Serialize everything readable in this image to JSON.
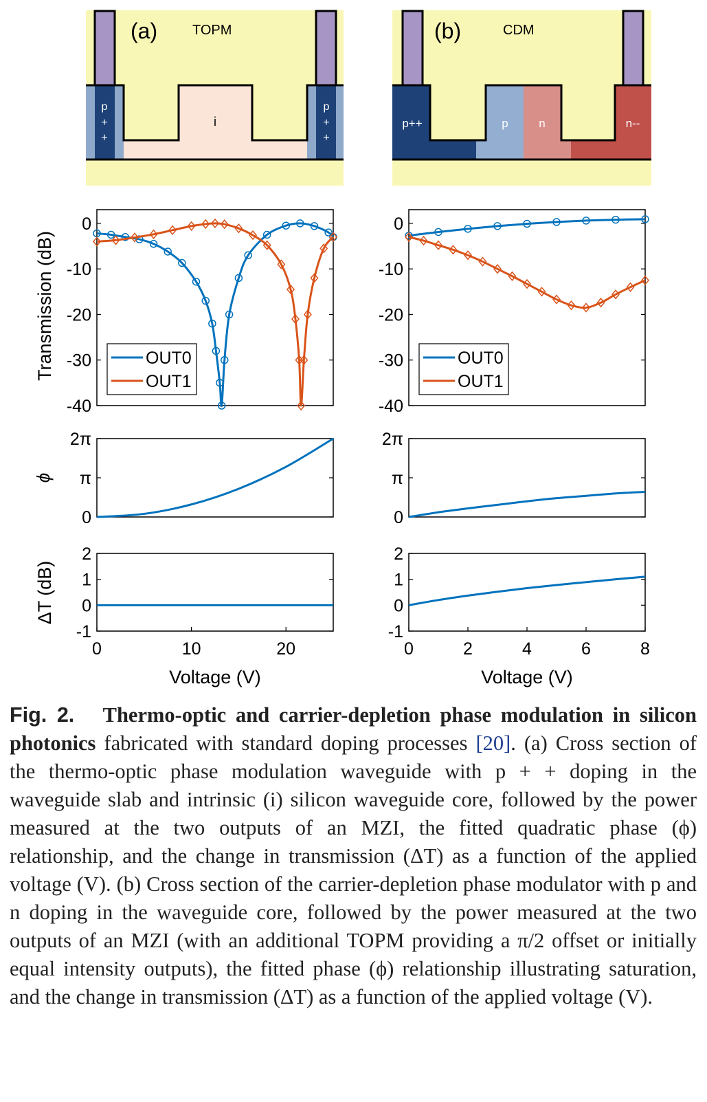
{
  "panels": [
    {
      "id": "a",
      "label": "(a)",
      "device": "TOPM",
      "regions": {
        "left_contact": "p\n+\n+",
        "core": "i",
        "right_contact": "p\n+\n+"
      },
      "colors": {
        "cladding": "#f9f7b5",
        "contact": "#1e4277",
        "contact_edge": "#8fa9cb",
        "core": "#fbe5d8",
        "metal": "#a796c5"
      },
      "transmission": {
        "ylabel": "Transmission (dB)",
        "xlim": [
          0,
          25
        ],
        "ylim": [
          -40,
          3
        ],
        "yticks": [
          "0",
          "-10",
          "-20",
          "-30",
          "-40"
        ],
        "legend": [
          "OUT0",
          "OUT1"
        ]
      },
      "phase": {
        "ylabel": "ϕ",
        "yticks": [
          "2π",
          "π",
          "0"
        ],
        "final_phase_fraction_of_2pi": 1.0
      },
      "delta_t": {
        "ylabel": "ΔT (dB)",
        "yticks": [
          "2",
          "1",
          "0",
          "-1"
        ],
        "xticks": [
          "0",
          "10",
          "20"
        ],
        "xlabel": "Voltage (V)"
      }
    },
    {
      "id": "b",
      "label": "(b)",
      "device": "CDM",
      "regions": {
        "left_contact": "p++",
        "core_p": "p",
        "core_n": "n",
        "right_contact": "n--"
      },
      "colors": {
        "cladding": "#f9f7b5",
        "pplus": "#1e4277",
        "p": "#93aed0",
        "n": "#d98f89",
        "nminus": "#c0504a",
        "metal": "#a796c5"
      },
      "transmission": {
        "ylabel": "",
        "xlim": [
          0,
          8
        ],
        "ylim": [
          -40,
          3
        ],
        "yticks": [
          "0",
          "-10",
          "-20",
          "-30",
          "-40"
        ],
        "legend": [
          "OUT0",
          "OUT1"
        ]
      },
      "phase": {
        "ylabel": "",
        "yticks": [
          "2π",
          "π",
          "0"
        ],
        "final_phase_fraction_of_2pi": 0.32
      },
      "delta_t": {
        "ylabel": "",
        "yticks": [
          "2",
          "1",
          "0",
          "-1"
        ],
        "xticks": [
          "0",
          "2",
          "4",
          "6",
          "8"
        ],
        "xlabel": "Voltage (V)"
      }
    }
  ],
  "series_colors": {
    "OUT0": "#0072bd",
    "OUT1": "#d95319"
  },
  "chart_data": [
    {
      "type": "line",
      "panel": "a",
      "ylabel": "Transmission (dB)",
      "xlim": [
        0,
        25
      ],
      "ylim": [
        -40,
        3
      ],
      "series": [
        {
          "name": "OUT0",
          "x": [
            0,
            1.5,
            3,
            4.5,
            6,
            7.5,
            9,
            10.5,
            11.5,
            12.2,
            12.6,
            13.0,
            13.2,
            13.5,
            14,
            15,
            16,
            18,
            20,
            21.5,
            23,
            24.5,
            25
          ],
          "values": [
            -2.2,
            -2.5,
            -3.0,
            -3.5,
            -4.5,
            -6.2,
            -8.7,
            -12.8,
            -17.0,
            -22,
            -28,
            -35,
            -40,
            -30,
            -20,
            -12,
            -7,
            -2.5,
            -0.5,
            0,
            -0.6,
            -2.0,
            -3
          ]
        },
        {
          "name": "OUT1",
          "x": [
            0,
            2,
            4,
            6,
            8,
            10,
            11.5,
            12.5,
            13.5,
            15,
            16.5,
            18,
            19.5,
            20.5,
            21.0,
            21.4,
            21.6,
            21.9,
            22.3,
            23,
            24,
            25
          ],
          "values": [
            -4,
            -3.7,
            -3.1,
            -2.4,
            -1.5,
            -0.6,
            -0.15,
            0,
            -0.2,
            -1.1,
            -2.6,
            -4.8,
            -9,
            -14.5,
            -21,
            -30,
            -40,
            -30,
            -20,
            -12,
            -5.5,
            -3
          ]
        }
      ]
    },
    {
      "type": "line",
      "panel": "a",
      "ylabel": "ϕ",
      "xlim": [
        0,
        25
      ],
      "series": [
        {
          "name": "",
          "x": [
            0,
            5,
            10,
            15,
            20,
            25
          ],
          "values": [
            0,
            0.04,
            0.16,
            0.36,
            0.64,
            1.0
          ]
        }
      ]
    },
    {
      "type": "line",
      "panel": "a",
      "ylabel": "ΔT (dB)",
      "xlabel": "Voltage (V)",
      "xlim": [
        0,
        25
      ],
      "ylim": [
        -1,
        2
      ],
      "series": [
        {
          "name": "",
          "x": [
            0,
            25
          ],
          "values": [
            0,
            0
          ]
        }
      ]
    },
    {
      "type": "line",
      "panel": "b",
      "xlim": [
        0,
        8
      ],
      "ylim": [
        -40,
        3
      ],
      "series": [
        {
          "name": "OUT0",
          "x": [
            0,
            1,
            2,
            3,
            4,
            5,
            6,
            7,
            8
          ],
          "values": [
            -2.7,
            -1.9,
            -1.2,
            -0.6,
            -0.1,
            0.3,
            0.6,
            0.8,
            0.9
          ]
        },
        {
          "name": "OUT1",
          "x": [
            0,
            0.5,
            1,
            1.5,
            2,
            2.5,
            3,
            3.5,
            4,
            4.5,
            5,
            5.5,
            6,
            6.5,
            7,
            7.5,
            8
          ],
          "values": [
            -3,
            -3.8,
            -4.8,
            -5.8,
            -7,
            -8.4,
            -10.0,
            -11.6,
            -13.3,
            -15.0,
            -16.7,
            -18.0,
            -18.5,
            -17.4,
            -15.6,
            -14.0,
            -12.5
          ]
        }
      ]
    },
    {
      "type": "line",
      "panel": "b",
      "xlim": [
        0,
        8
      ],
      "series": [
        {
          "name": "",
          "x": [
            0,
            1,
            2,
            3,
            4,
            5,
            6,
            7,
            8
          ],
          "values": [
            0,
            0.06,
            0.11,
            0.155,
            0.2,
            0.24,
            0.27,
            0.3,
            0.32
          ]
        }
      ]
    },
    {
      "type": "line",
      "panel": "b",
      "xlabel": "Voltage (V)",
      "xlim": [
        0,
        8
      ],
      "ylim": [
        -1,
        2
      ],
      "series": [
        {
          "name": "",
          "x": [
            0,
            1,
            2,
            3,
            4,
            5,
            6,
            7,
            8
          ],
          "values": [
            0,
            0.2,
            0.37,
            0.52,
            0.66,
            0.78,
            0.89,
            1.0,
            1.1
          ]
        }
      ]
    }
  ],
  "caption": {
    "label": "Fig. 2.",
    "bold_title": "Thermo-optic and carrier-depletion phase modulation in silicon photonics",
    "text_before_ref": " fabricated with standard doping processes ",
    "ref": "[20]",
    "body": ". (a) Cross section of the thermo-optic phase modulation waveguide with p + + doping in the waveguide slab and intrinsic (i) silicon waveguide core, followed by the power measured at the two outputs of an MZI, the fitted quadratic phase (ϕ) relationship, and the change in transmission (ΔT) as a function of the applied voltage (V). (b) Cross section of the carrier-depletion phase modulator with p and n doping in the waveguide core, followed by the power measured at the two outputs of an MZI (with an additional TOPM providing a π/2 offset or initially equal intensity outputs), the fitted phase (ϕ) relationship illustrating saturation, and the change in transmission (ΔT) as a function of the applied voltage (V)."
  }
}
